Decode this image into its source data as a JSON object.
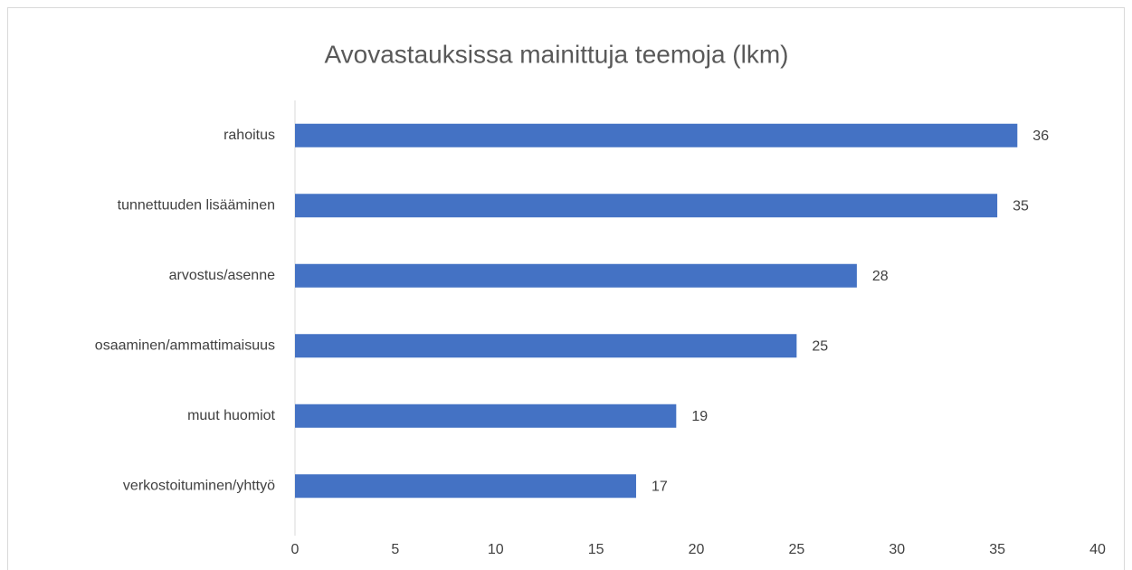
{
  "chart_data": {
    "type": "bar",
    "orientation": "horizontal",
    "title": "Avovastauksissa mainittuja teemoja (lkm)",
    "categories": [
      "rahoitus",
      "tunnettuuden lisääminen",
      "arvostus/asenne",
      "osaaminen/ammattimaisuus",
      "muut huomiot",
      "verkostoituminen/yhttyö"
    ],
    "values": [
      36,
      35,
      28,
      25,
      19,
      17
    ],
    "color": "#4472c4",
    "xlim": [
      0,
      40
    ],
    "xticks": [
      0,
      5,
      10,
      15,
      20,
      25,
      30,
      35,
      40
    ],
    "grid": false,
    "data_labels": true
  }
}
